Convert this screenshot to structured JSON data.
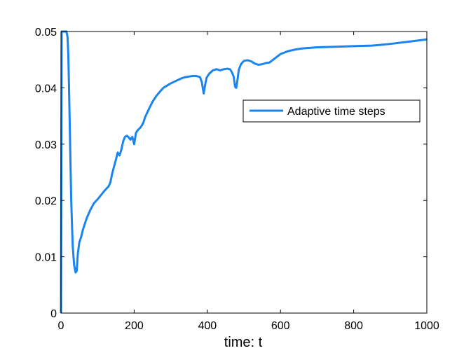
{
  "chart_data": {
    "type": "line",
    "title": "",
    "xlabel": "time: t",
    "ylabel": "",
    "xlim": [
      0,
      1000
    ],
    "ylim": [
      0,
      0.05
    ],
    "xticks": [
      "0",
      "200",
      "400",
      "600",
      "800",
      "1000"
    ],
    "yticks": [
      "0",
      "0.01",
      "0.02",
      "0.03",
      "0.04",
      "0.05"
    ],
    "grid": false,
    "legend_position": "right",
    "series": [
      {
        "name": "Adaptive time steps",
        "color": "#1a84f0",
        "x": [
          0,
          2,
          4,
          10,
          15,
          18,
          20,
          22,
          25,
          28,
          32,
          36,
          40,
          43,
          46,
          50,
          55,
          60,
          70,
          80,
          90,
          100,
          110,
          120,
          130,
          135,
          140,
          145,
          150,
          155,
          160,
          165,
          170,
          175,
          180,
          185,
          190,
          195,
          200,
          205,
          210,
          215,
          220,
          225,
          230,
          240,
          250,
          260,
          270,
          280,
          290,
          300,
          310,
          320,
          330,
          340,
          350,
          360,
          370,
          380,
          385,
          390,
          394,
          398,
          405,
          415,
          425,
          435,
          445,
          455,
          462,
          467,
          472,
          476,
          479,
          482,
          486,
          492,
          500,
          510,
          520,
          530,
          540,
          550,
          560,
          570,
          580,
          590,
          600,
          620,
          640,
          660,
          680,
          700,
          750,
          800,
          850,
          870,
          900,
          950,
          1000
        ],
        "y": [
          0,
          0.05,
          0.05,
          0.05,
          0.05,
          0.049,
          0.046,
          0.04,
          0.03,
          0.02,
          0.012,
          0.0085,
          0.0072,
          0.0075,
          0.0105,
          0.0125,
          0.0135,
          0.0148,
          0.0168,
          0.0183,
          0.0195,
          0.0202,
          0.021,
          0.0218,
          0.0225,
          0.0232,
          0.0248,
          0.026,
          0.0272,
          0.0285,
          0.028,
          0.029,
          0.0305,
          0.0313,
          0.0315,
          0.0312,
          0.0308,
          0.0313,
          0.03,
          0.032,
          0.0325,
          0.0328,
          0.0332,
          0.0338,
          0.0348,
          0.0362,
          0.0375,
          0.0385,
          0.0393,
          0.04,
          0.0404,
          0.0408,
          0.0411,
          0.0414,
          0.0417,
          0.0419,
          0.042,
          0.0421,
          0.0421,
          0.0419,
          0.041,
          0.039,
          0.0405,
          0.0418,
          0.0425,
          0.0431,
          0.0433,
          0.0431,
          0.0433,
          0.0434,
          0.0433,
          0.0428,
          0.042,
          0.0402,
          0.04,
          0.0412,
          0.0432,
          0.0442,
          0.0448,
          0.0449,
          0.0447,
          0.0443,
          0.0441,
          0.0442,
          0.0444,
          0.0445,
          0.045,
          0.0455,
          0.046,
          0.0465,
          0.0468,
          0.047,
          0.0471,
          0.0472,
          0.0473,
          0.0474,
          0.0475,
          0.0476,
          0.0478,
          0.0482,
          0.0486
        ]
      }
    ]
  }
}
